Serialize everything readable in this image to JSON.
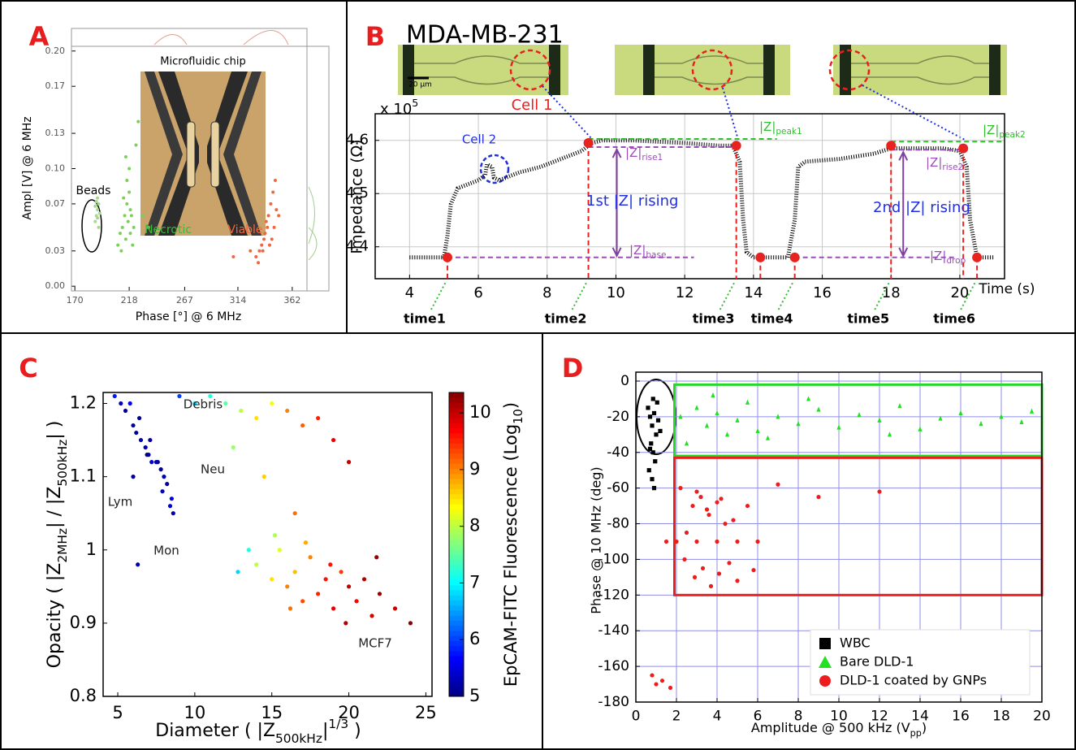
{
  "chart_data": [
    {
      "type": "scatter",
      "panel_label": "A",
      "title": "Microfluidic chip",
      "xlabel": "Phase [°] @ 6 MHz",
      "ylabel": "Ampl [V] @ 6 MHz",
      "xlim": [
        167,
        375
      ],
      "ylim": [
        -0.004,
        0.204
      ],
      "xticks": [
        170,
        218,
        267,
        314,
        362
      ],
      "yticks": [
        {
          "value": 0,
          "label": "0.00"
        },
        0.03,
        0.07,
        {
          "value": 0.1,
          "label": "0.10"
        },
        0.13,
        0.17,
        {
          "value": 0.2,
          "label": "0.20"
        }
      ],
      "grid": false,
      "series": [
        {
          "name": "Beads",
          "color": "#a8d890",
          "x": [
            188,
            189,
            190,
            191,
            189,
            190,
            192,
            188,
            190,
            191
          ],
          "y": [
            0.055,
            0.06,
            0.065,
            0.07,
            0.072,
            0.058,
            0.062,
            0.068,
            0.075,
            0.05
          ]
        },
        {
          "name": "Necrotic",
          "color": "#7cd05a",
          "x": [
            208,
            210,
            212,
            214,
            215,
            216,
            217,
            218,
            219,
            220,
            221,
            222,
            213,
            216,
            218,
            224,
            226,
            230,
            235,
            211,
            215,
            219
          ],
          "y": [
            0.035,
            0.045,
            0.05,
            0.06,
            0.04,
            0.07,
            0.055,
            0.08,
            0.045,
            0.06,
            0.035,
            0.05,
            0.075,
            0.09,
            0.1,
            0.12,
            0.14,
            0.06,
            0.05,
            0.03,
            0.11,
            0.065
          ]
        },
        {
          "name": "Viable",
          "color": "#f0673f",
          "x": [
            330,
            333,
            335,
            337,
            338,
            340,
            341,
            342,
            343,
            344,
            345,
            346,
            339,
            336,
            348,
            350,
            347,
            332,
            325,
            310
          ],
          "y": [
            0.025,
            0.03,
            0.035,
            0.04,
            0.045,
            0.05,
            0.06,
            0.035,
            0.07,
            0.04,
            0.08,
            0.05,
            0.055,
            0.03,
            0.065,
            0.06,
            0.09,
            0.02,
            0.03,
            0.025
          ]
        }
      ]
    },
    {
      "type": "line",
      "panel_label": "B",
      "title": "MDA-MB-231",
      "xlabel": "Time (s)",
      "ylabel": "Impedance (Ω)",
      "y_multiplier": {
        "base": "x 10",
        "exp": "5"
      },
      "scale_bar": "20 μm",
      "cell1": "Cell 1",
      "cell2": "Cell 2",
      "xlim": [
        3,
        21.3
      ],
      "ylim": [
        4.34,
        4.65
      ],
      "xticks": [
        4,
        6,
        8,
        10,
        12,
        14,
        16,
        18,
        20
      ],
      "yticks": [
        4.4,
        4.5,
        4.6
      ],
      "grid": true,
      "grid_color": "#c8c8c8",
      "series": [
        {
          "color": "#000000",
          "x": [
            4.0,
            5.0,
            5.1,
            5.2,
            5.4,
            5.8,
            6.0,
            6.2,
            6.25,
            6.4,
            6.45,
            6.6,
            6.8,
            7.2,
            7.8,
            8.4,
            9.0,
            9.3,
            9.6,
            10.5,
            12.0,
            13.0,
            13.4,
            13.6,
            13.7,
            13.8,
            14.0,
            15.0,
            15.2,
            15.3,
            15.5,
            16.5,
            17.5,
            18.0,
            19.5,
            20.0,
            20.2,
            20.3,
            20.5,
            21.0
          ],
          "y": [
            4.38,
            4.38,
            4.42,
            4.48,
            4.51,
            4.52,
            4.525,
            4.535,
            4.555,
            4.55,
            4.53,
            4.525,
            4.53,
            4.54,
            4.55,
            4.565,
            4.58,
            4.595,
            4.6,
            4.6,
            4.595,
            4.59,
            4.59,
            4.56,
            4.45,
            4.39,
            4.38,
            4.38,
            4.45,
            4.55,
            4.56,
            4.565,
            4.575,
            4.585,
            4.585,
            4.58,
            4.55,
            4.45,
            4.38,
            4.38
          ]
        },
        {
          "color": "#e8231f",
          "x": [
            5.1,
            9.2,
            13.5,
            14.2,
            15.2,
            18.0,
            20.1,
            20.5
          ],
          "y": [
            4.38,
            4.595,
            4.59,
            4.38,
            4.38,
            4.59,
            4.585,
            4.38
          ]
        }
      ],
      "time_labels": [
        "time1",
        "time2",
        "time3",
        "time4",
        "time5",
        "time6"
      ],
      "z_labels": {
        "peak1": {
          "main": "|Z|",
          "sub": "peak1"
        },
        "rise1": {
          "main": "|Z|",
          "sub": "rise1"
        },
        "base": {
          "main": "|Z|",
          "sub": "base"
        },
        "rise2": {
          "main": "|Z|",
          "sub": "rise2"
        },
        "drop": {
          "main": "|Z|",
          "sub": "drop"
        },
        "peak2": {
          "main": "|Z|",
          "sub": "peak2"
        }
      },
      "rising1": "1st |Z| rising",
      "rising2": "2nd |Z| rising"
    },
    {
      "type": "scatter",
      "panel_label": "C",
      "xlabel": [
        "Diameter ( |Z",
        "500kHz",
        "|",
        "1/3",
        " )"
      ],
      "ylabel": [
        "Opacity ( |Z",
        "2MHz",
        "| / |Z",
        "500kHz",
        "| )"
      ],
      "colorbar_label": [
        "EpCAM-FITC Fluorescence (Log",
        "10",
        ")"
      ],
      "xlim": [
        4.05,
        25.4
      ],
      "ylim": [
        0.8,
        1.215
      ],
      "xticks": [
        5,
        10,
        15,
        20,
        25
      ],
      "yticks": [
        0.8,
        0.9,
        1,
        1.1,
        1.2
      ],
      "clim": [
        5,
        10.36
      ],
      "cticks": [
        5,
        6,
        7,
        8,
        9,
        10
      ],
      "colormap": "jet",
      "grid": false,
      "annotations": [
        "Debris",
        "Neu",
        "Lym",
        "Mon",
        "MCF7"
      ],
      "series": [
        {
          "x": [
            5.5,
            6,
            6.2,
            6.5,
            6.8,
            7,
            7.2,
            7.5,
            7.8,
            8,
            8.2,
            8.5,
            6.4,
            7.1,
            7.9,
            8.4,
            8.6,
            5.8,
            6.9,
            7.6,
            4.8,
            5.2,
            6,
            6.3
          ],
          "y": [
            1.19,
            1.17,
            1.16,
            1.15,
            1.14,
            1.13,
            1.12,
            1.12,
            1.11,
            1.1,
            1.09,
            1.07,
            1.18,
            1.15,
            1.08,
            1.06,
            1.05,
            1.2,
            1.13,
            1.12,
            1.21,
            1.2,
            1.1,
            0.98
          ],
          "c": [
            5.1,
            5.2,
            5.1,
            5.3,
            5.2,
            5.1,
            5.4,
            5.2,
            5.1,
            5.3,
            5.2,
            5.5,
            5.1,
            5.2,
            5.3,
            5.4,
            5.2,
            5.6,
            5.1,
            5.2,
            5.8,
            5.3,
            5.1,
            5.2
          ]
        },
        {
          "x": [
            9,
            10,
            11,
            12,
            13,
            14,
            15,
            16,
            17,
            18,
            19,
            20,
            12.5,
            14.5,
            16.5
          ],
          "y": [
            1.21,
            1.2,
            1.21,
            1.2,
            1.19,
            1.18,
            1.2,
            1.19,
            1.17,
            1.18,
            1.15,
            1.12,
            1.14,
            1.1,
            1.05
          ],
          "c": [
            6,
            6.8,
            7.2,
            7.5,
            8,
            8.5,
            8.3,
            9,
            9.2,
            9.5,
            9.8,
            10,
            7.8,
            8.6,
            9.1
          ]
        },
        {
          "x": [
            14,
            15,
            15.5,
            16,
            16.5,
            17,
            17.5,
            18,
            18.5,
            19,
            19.5,
            20,
            20.5,
            21,
            21.5,
            22,
            23,
            17.2,
            18.8,
            19.8,
            16.2,
            15.2,
            13.5,
            12.8,
            21.8,
            24
          ],
          "y": [
            0.98,
            0.96,
            1,
            0.95,
            0.97,
            0.93,
            0.99,
            0.94,
            0.96,
            0.92,
            0.97,
            0.95,
            0.93,
            0.96,
            0.91,
            0.94,
            0.92,
            1.01,
            0.98,
            0.9,
            0.92,
            1.02,
            1.0,
            0.97,
            0.99,
            0.9
          ],
          "c": [
            8,
            8.5,
            8.2,
            9,
            8.7,
            9.3,
            9,
            9.5,
            9.6,
            9.8,
            9.4,
            10,
            9.7,
            10.1,
            9.9,
            10.2,
            10,
            8.8,
            9.6,
            10.1,
            9.1,
            7.9,
            7.2,
            6.8,
            10.2,
            10.3
          ]
        }
      ]
    },
    {
      "type": "scatter",
      "panel_label": "D",
      "xlabel": [
        "Amplitude @ 500 kHz (V",
        "pp",
        ")"
      ],
      "ylabel": "Phase @ 10 MHz (deg)",
      "xlim": [
        0,
        20
      ],
      "ylim": [
        -180,
        5
      ],
      "xticks": [
        0,
        2,
        4,
        6,
        8,
        10,
        12,
        14,
        16,
        18,
        20
      ],
      "yticks": [
        -180,
        -160,
        -140,
        -120,
        -100,
        -80,
        -60,
        -40,
        -20,
        0
      ],
      "grid": true,
      "grid_color": "#8f8fe6",
      "legend": "lower right",
      "gates": [
        {
          "color": "#27d827",
          "x": [
            1.9,
            20
          ],
          "y": [
            -42,
            -2
          ]
        },
        {
          "color": "#e82020",
          "x": [
            1.9,
            20
          ],
          "y": [
            -120,
            -43
          ]
        }
      ],
      "series": [
        {
          "name": "WBC",
          "marker": "square",
          "color": "#000000",
          "x": [
            0.6,
            0.7,
            0.8,
            0.9,
            1.0,
            1.1,
            1.2,
            0.75,
            0.85,
            0.95,
            1.05,
            0.65,
            0.8,
            0.9,
            0.7,
            0.85
          ],
          "y": [
            -15,
            -20,
            -25,
            -18,
            -30,
            -22,
            -28,
            -35,
            -40,
            -45,
            -12,
            -50,
            -55,
            -60,
            -38,
            -10
          ]
        },
        {
          "name": "Bare DLD-1",
          "marker": "triangle",
          "color": "#22e022",
          "x": [
            2.2,
            3,
            3.5,
            4,
            4.5,
            5,
            5.5,
            6,
            7,
            8,
            9,
            10,
            11,
            12,
            13,
            14,
            15,
            16,
            17,
            18,
            19,
            19.5,
            2.5,
            3.8,
            6.5,
            8.5,
            12.5
          ],
          "y": [
            -20,
            -15,
            -25,
            -18,
            -30,
            -22,
            -12,
            -28,
            -20,
            -24,
            -16,
            -26,
            -19,
            -22,
            -14,
            -27,
            -21,
            -18,
            -24,
            -20,
            -23,
            -17,
            -35,
            -8,
            -32,
            -10,
            -30
          ]
        },
        {
          "name": "DLD-1 coated by GNPs",
          "marker": "circle",
          "color": "#ee1c1c",
          "x": [
            2.2,
            2.8,
            3.2,
            3.6,
            4,
            4.4,
            2.5,
            3,
            3.5,
            4.2,
            4.8,
            5.5,
            2.4,
            2.9,
            3.3,
            3.7,
            4.1,
            4.6,
            5,
            5.8,
            1.5,
            2,
            3,
            4,
            5,
            6,
            0.8,
            1,
            1.3,
            1.7,
            7,
            9,
            12
          ],
          "y": [
            -60,
            -70,
            -65,
            -75,
            -68,
            -80,
            -85,
            -62,
            -72,
            -66,
            -78,
            -70,
            -100,
            -110,
            -105,
            -115,
            -108,
            -102,
            -112,
            -106,
            -90,
            -90,
            -90,
            -90,
            -90,
            -90,
            -165,
            -170,
            -168,
            -172,
            -58,
            -65,
            -62
          ]
        }
      ]
    }
  ]
}
